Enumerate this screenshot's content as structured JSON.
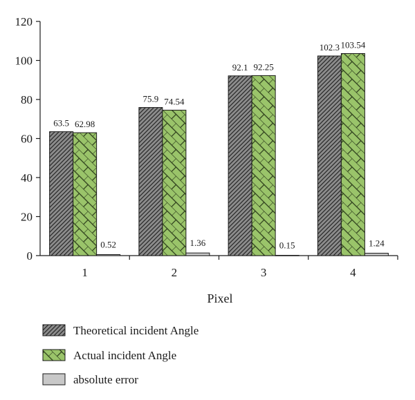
{
  "chart_data": {
    "type": "bar",
    "categories": [
      "1",
      "2",
      "3",
      "4"
    ],
    "series": [
      {
        "name": "Theoretical incident Angle",
        "values": [
          63.5,
          75.9,
          92.1,
          102.3
        ],
        "labels": [
          "63.5",
          "75.9",
          "92.1",
          "102.3"
        ],
        "color": "#8c8c8c",
        "pattern": "diagonal-hatch"
      },
      {
        "name": "Actual incident Angle",
        "values": [
          62.98,
          74.54,
          92.25,
          103.54
        ],
        "labels": [
          "62.98",
          "74.54",
          "92.25",
          "103.54"
        ],
        "color": "#9ac46a",
        "pattern": "brick-lattice"
      },
      {
        "name": "absolute error",
        "values": [
          0.52,
          1.36,
          0.15,
          1.24
        ],
        "labels": [
          "0.52",
          "1.36",
          "0.15",
          "1.24"
        ],
        "color": "#c8c8c8",
        "pattern": "solid"
      }
    ],
    "title": "",
    "xlabel": "Pixel",
    "ylabel": "",
    "ylim": [
      0,
      120
    ],
    "yticks": [
      "0",
      "20",
      "40",
      "60",
      "80",
      "100",
      "120"
    ],
    "grid": false,
    "legend_position": "bottom-left"
  }
}
